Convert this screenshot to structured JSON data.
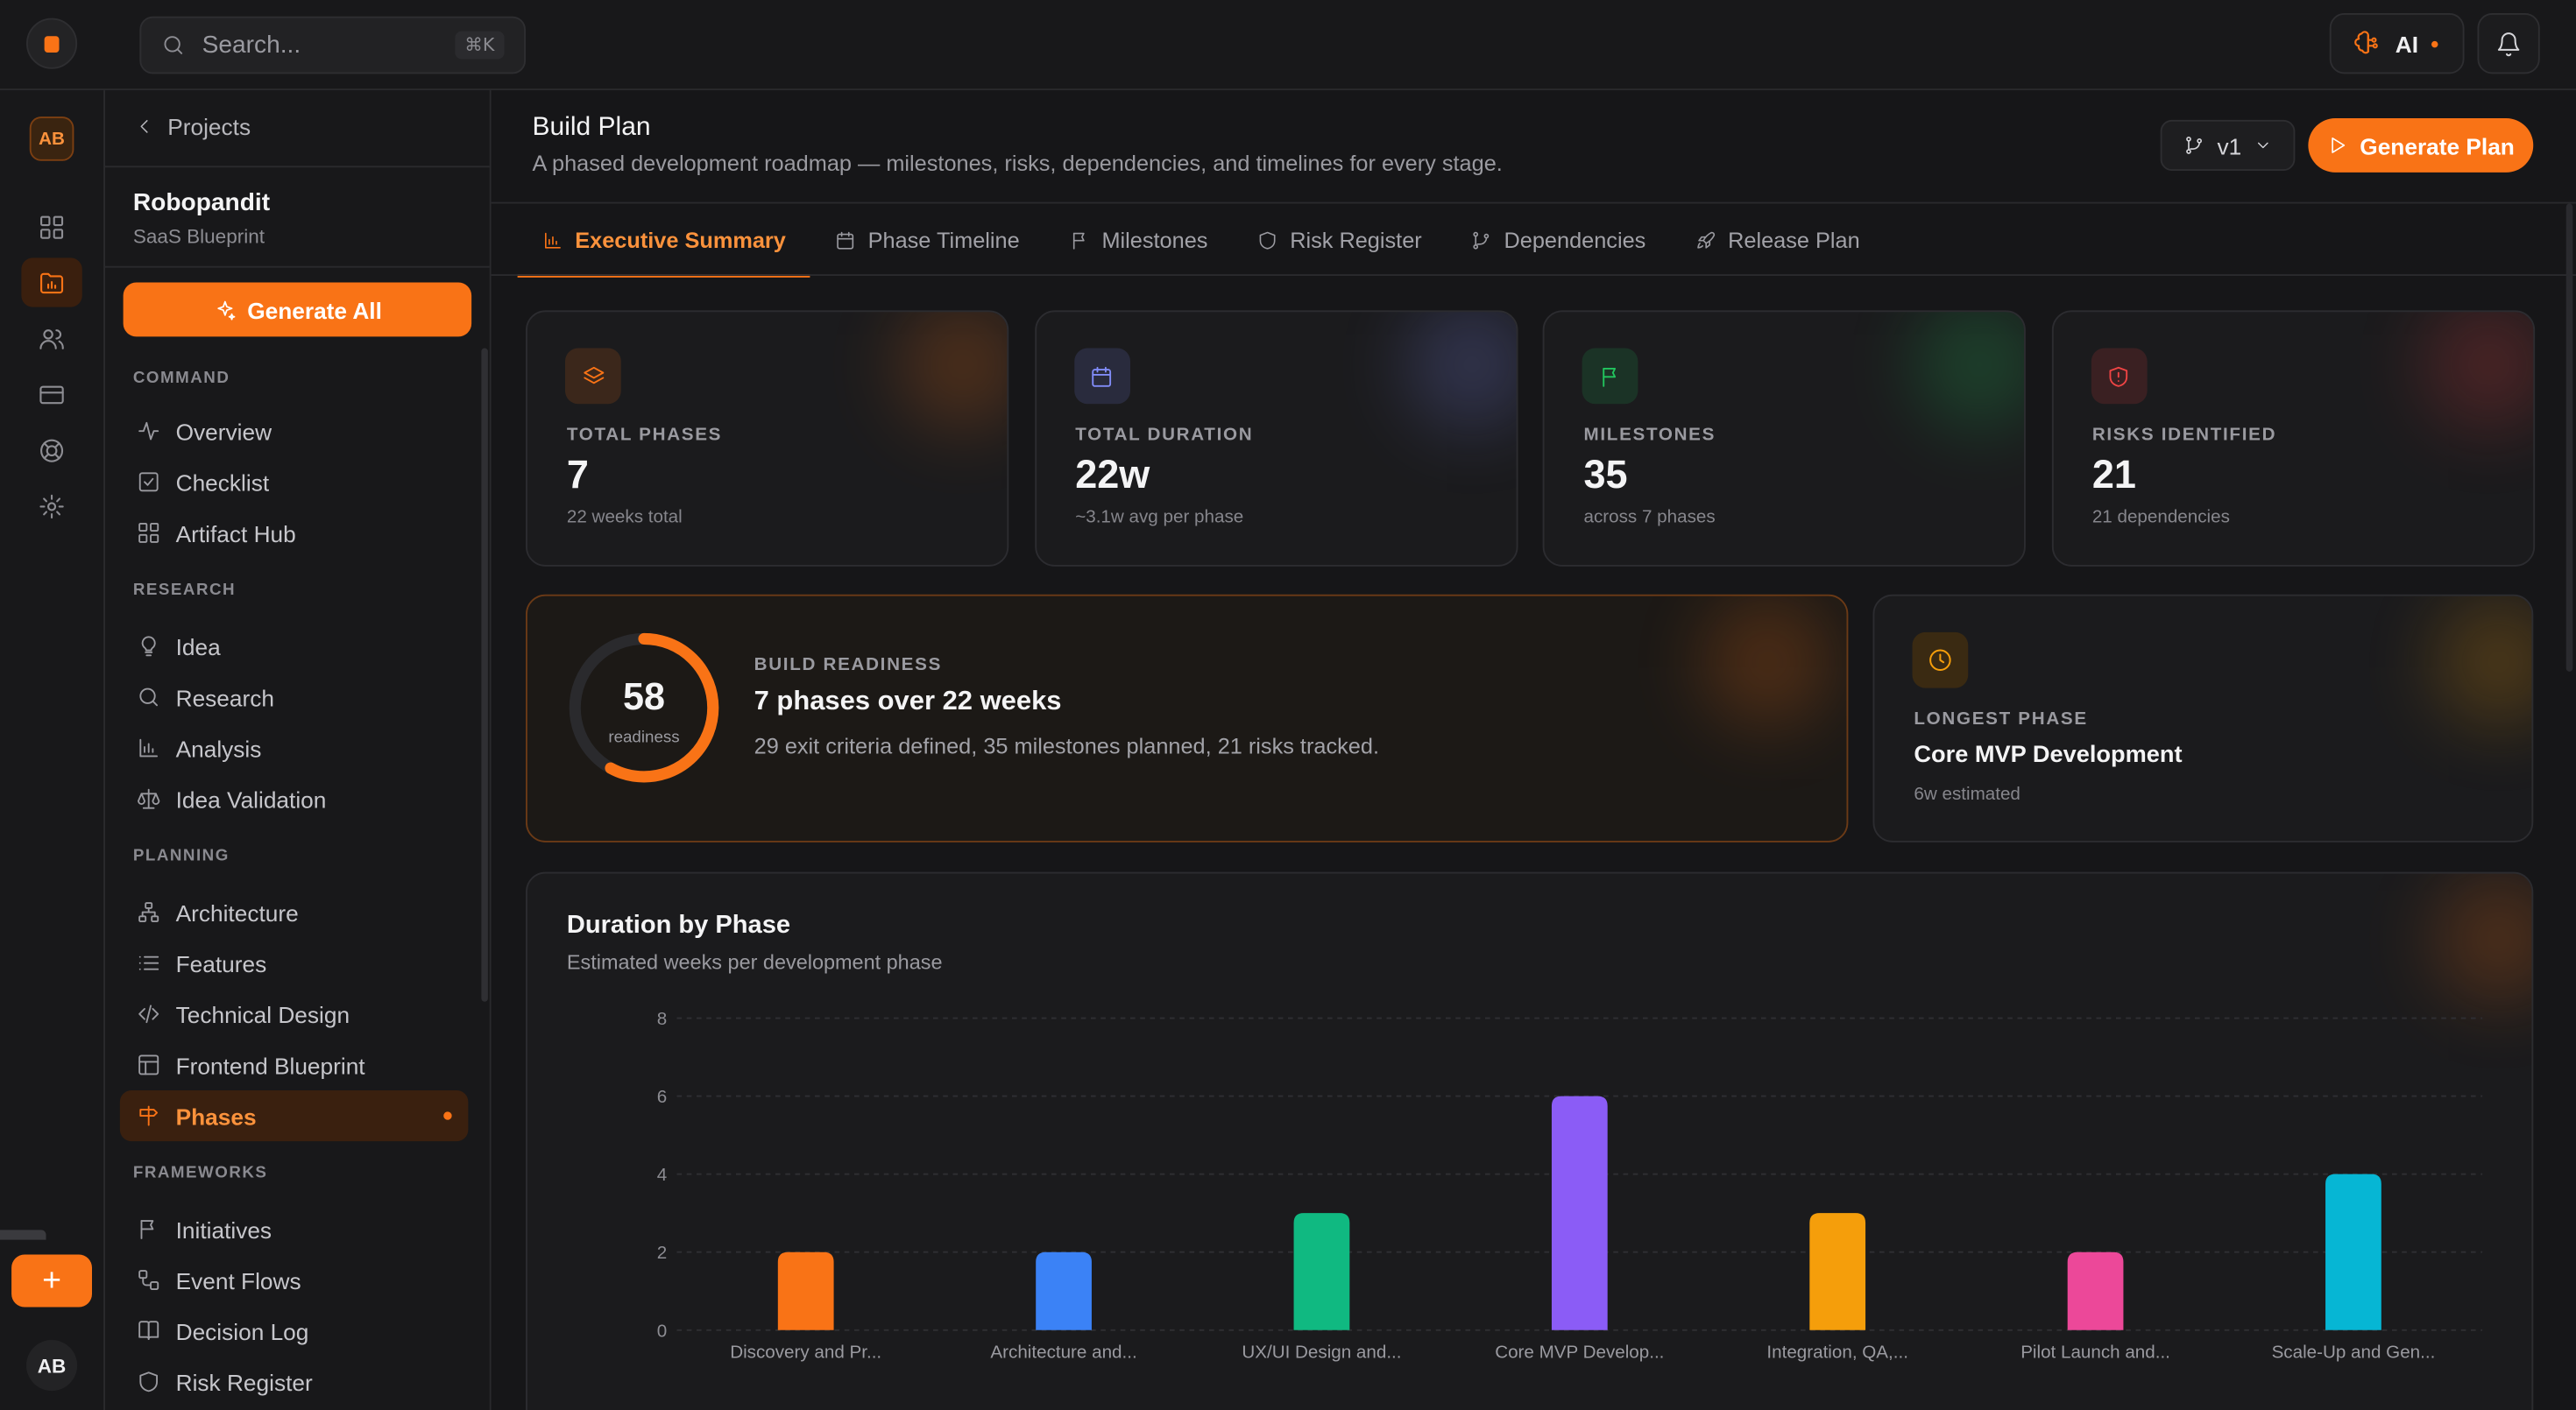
{
  "topbar": {
    "search_placeholder": "Search...",
    "search_shortcut": "⌘K",
    "ai_label": "AI"
  },
  "rail": {
    "avatar_top": "AB",
    "avatar_bottom": "AB",
    "icons": [
      "grid-icon",
      "folder-chart-icon",
      "users-icon",
      "card-icon",
      "lifebuoy-icon",
      "settings-icon"
    ],
    "add_label": "+"
  },
  "sidebar": {
    "back_label": "Projects",
    "project_name": "Robopandit",
    "project_type": "SaaS Blueprint",
    "generate_all_label": "Generate All",
    "sections": [
      {
        "title": "COMMAND",
        "items": [
          {
            "label": "Overview",
            "icon": "activity-icon"
          },
          {
            "label": "Checklist",
            "icon": "checkbox-icon"
          },
          {
            "label": "Artifact Hub",
            "icon": "grid-icon"
          }
        ]
      },
      {
        "title": "RESEARCH",
        "items": [
          {
            "label": "Idea",
            "icon": "lightbulb-icon"
          },
          {
            "label": "Research",
            "icon": "search-icon"
          },
          {
            "label": "Analysis",
            "icon": "bar-chart-icon"
          },
          {
            "label": "Idea Validation",
            "icon": "scale-icon"
          }
        ]
      },
      {
        "title": "PLANNING",
        "items": [
          {
            "label": "Architecture",
            "icon": "network-icon"
          },
          {
            "label": "Features",
            "icon": "list-icon"
          },
          {
            "label": "Technical Design",
            "icon": "code-icon"
          },
          {
            "label": "Frontend Blueprint",
            "icon": "layout-icon"
          },
          {
            "label": "Phases",
            "icon": "signpost-icon",
            "active": true
          }
        ]
      },
      {
        "title": "FRAMEWORKS",
        "items": [
          {
            "label": "Initiatives",
            "icon": "flag-icon"
          },
          {
            "label": "Event Flows",
            "icon": "workflow-icon"
          },
          {
            "label": "Decision Log",
            "icon": "book-icon"
          },
          {
            "label": "Risk Register",
            "icon": "shield-icon"
          }
        ]
      }
    ]
  },
  "header": {
    "title": "Build Plan",
    "description": "A phased development roadmap — milestones, risks, dependencies, and timelines for every stage.",
    "version_label": "v1",
    "generate_plan_label": "Generate Plan"
  },
  "tabs": [
    {
      "label": "Executive Summary",
      "icon": "bar-chart-icon",
      "active": true
    },
    {
      "label": "Phase Timeline",
      "icon": "calendar-icon"
    },
    {
      "label": "Milestones",
      "icon": "flag-icon"
    },
    {
      "label": "Risk Register",
      "icon": "shield-icon"
    },
    {
      "label": "Dependencies",
      "icon": "git-branch-icon"
    },
    {
      "label": "Release Plan",
      "icon": "rocket-icon"
    }
  ],
  "stats": [
    {
      "label": "TOTAL PHASES",
      "value": "7",
      "sub": "22 weeks total",
      "icon": "layers-icon",
      "color": "#f97316"
    },
    {
      "label": "TOTAL DURATION",
      "value": "22w",
      "sub": "~3.1w avg per phase",
      "icon": "calendar-icon",
      "color": "#818cf8"
    },
    {
      "label": "MILESTONES",
      "value": "35",
      "sub": "across 7 phases",
      "icon": "flag-icon",
      "color": "#22c55e"
    },
    {
      "label": "RISKS IDENTIFIED",
      "value": "21",
      "sub": "21 dependencies",
      "icon": "shield-alert-icon",
      "color": "#ef4444"
    }
  ],
  "readiness": {
    "score": 58,
    "score_label": "readiness",
    "label": "BUILD READINESS",
    "title": "7 phases over 22 weeks",
    "description": "29 exit criteria defined, 35 milestones planned, 21 risks tracked."
  },
  "longest_phase": {
    "label": "LONGEST PHASE",
    "title": "Core MVP Development",
    "sub": "6w estimated"
  },
  "chart_data": {
    "type": "bar",
    "title": "Duration by Phase",
    "subtitle": "Estimated weeks per development phase",
    "categories": [
      "Discovery and Pr...",
      "Architecture and...",
      "UX/UI Design and...",
      "Core MVP Develop...",
      "Integration, QA,...",
      "Pilot Launch and...",
      "Scale-Up and Gen..."
    ],
    "values": [
      2,
      2,
      3,
      6,
      3,
      2,
      4
    ],
    "colors": [
      "#f97316",
      "#3b82f6",
      "#10b981",
      "#8b5cf6",
      "#f59e0b",
      "#ec4899",
      "#06b6d4"
    ],
    "ylim": [
      0,
      8
    ],
    "yticks": [
      0,
      2,
      4,
      6,
      8
    ],
    "grid": true
  }
}
